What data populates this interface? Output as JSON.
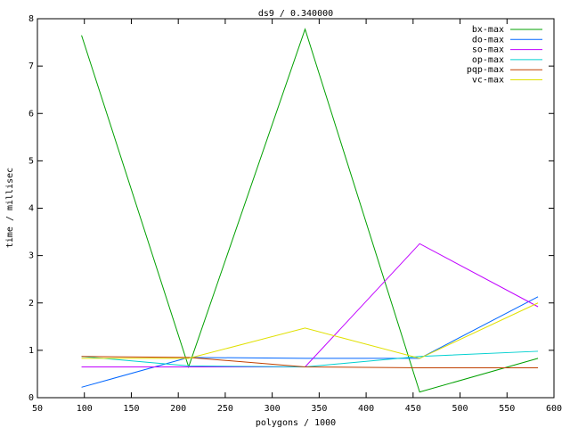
{
  "chart_data": {
    "type": "line",
    "title": "ds9 / 0.340000",
    "x_label": "polygons / 1000",
    "y_label": "time / millisec",
    "x": [
      97,
      211,
      335,
      457,
      583
    ],
    "series": [
      {
        "name": "bx-max",
        "color": "#00a000",
        "values": [
          7.65,
          0.65,
          7.78,
          0.12,
          0.83
        ]
      },
      {
        "name": "do-max",
        "color": "#0066ff",
        "values": [
          0.22,
          0.85,
          0.83,
          0.83,
          2.13
        ]
      },
      {
        "name": "so-max",
        "color": "#c000ff",
        "values": [
          0.65,
          0.65,
          0.65,
          3.25,
          1.92
        ]
      },
      {
        "name": "op-max",
        "color": "#00d0d0",
        "values": [
          0.87,
          0.67,
          0.65,
          0.87,
          0.98
        ]
      },
      {
        "name": "pqp-max",
        "color": "#c04000",
        "values": [
          0.87,
          0.85,
          0.65,
          0.63,
          0.63
        ]
      },
      {
        "name": "vc-max",
        "color": "#e0e000",
        "values": [
          0.83,
          0.83,
          1.47,
          0.83,
          2.0
        ]
      }
    ],
    "xlim": [
      50,
      600
    ],
    "xticks": [
      50,
      100,
      150,
      200,
      250,
      300,
      350,
      400,
      450,
      500,
      550,
      600
    ],
    "ylim": [
      0,
      8
    ],
    "yticks": [
      0,
      1,
      2,
      3,
      4,
      5,
      6,
      7,
      8
    ],
    "legend": "top-right"
  }
}
